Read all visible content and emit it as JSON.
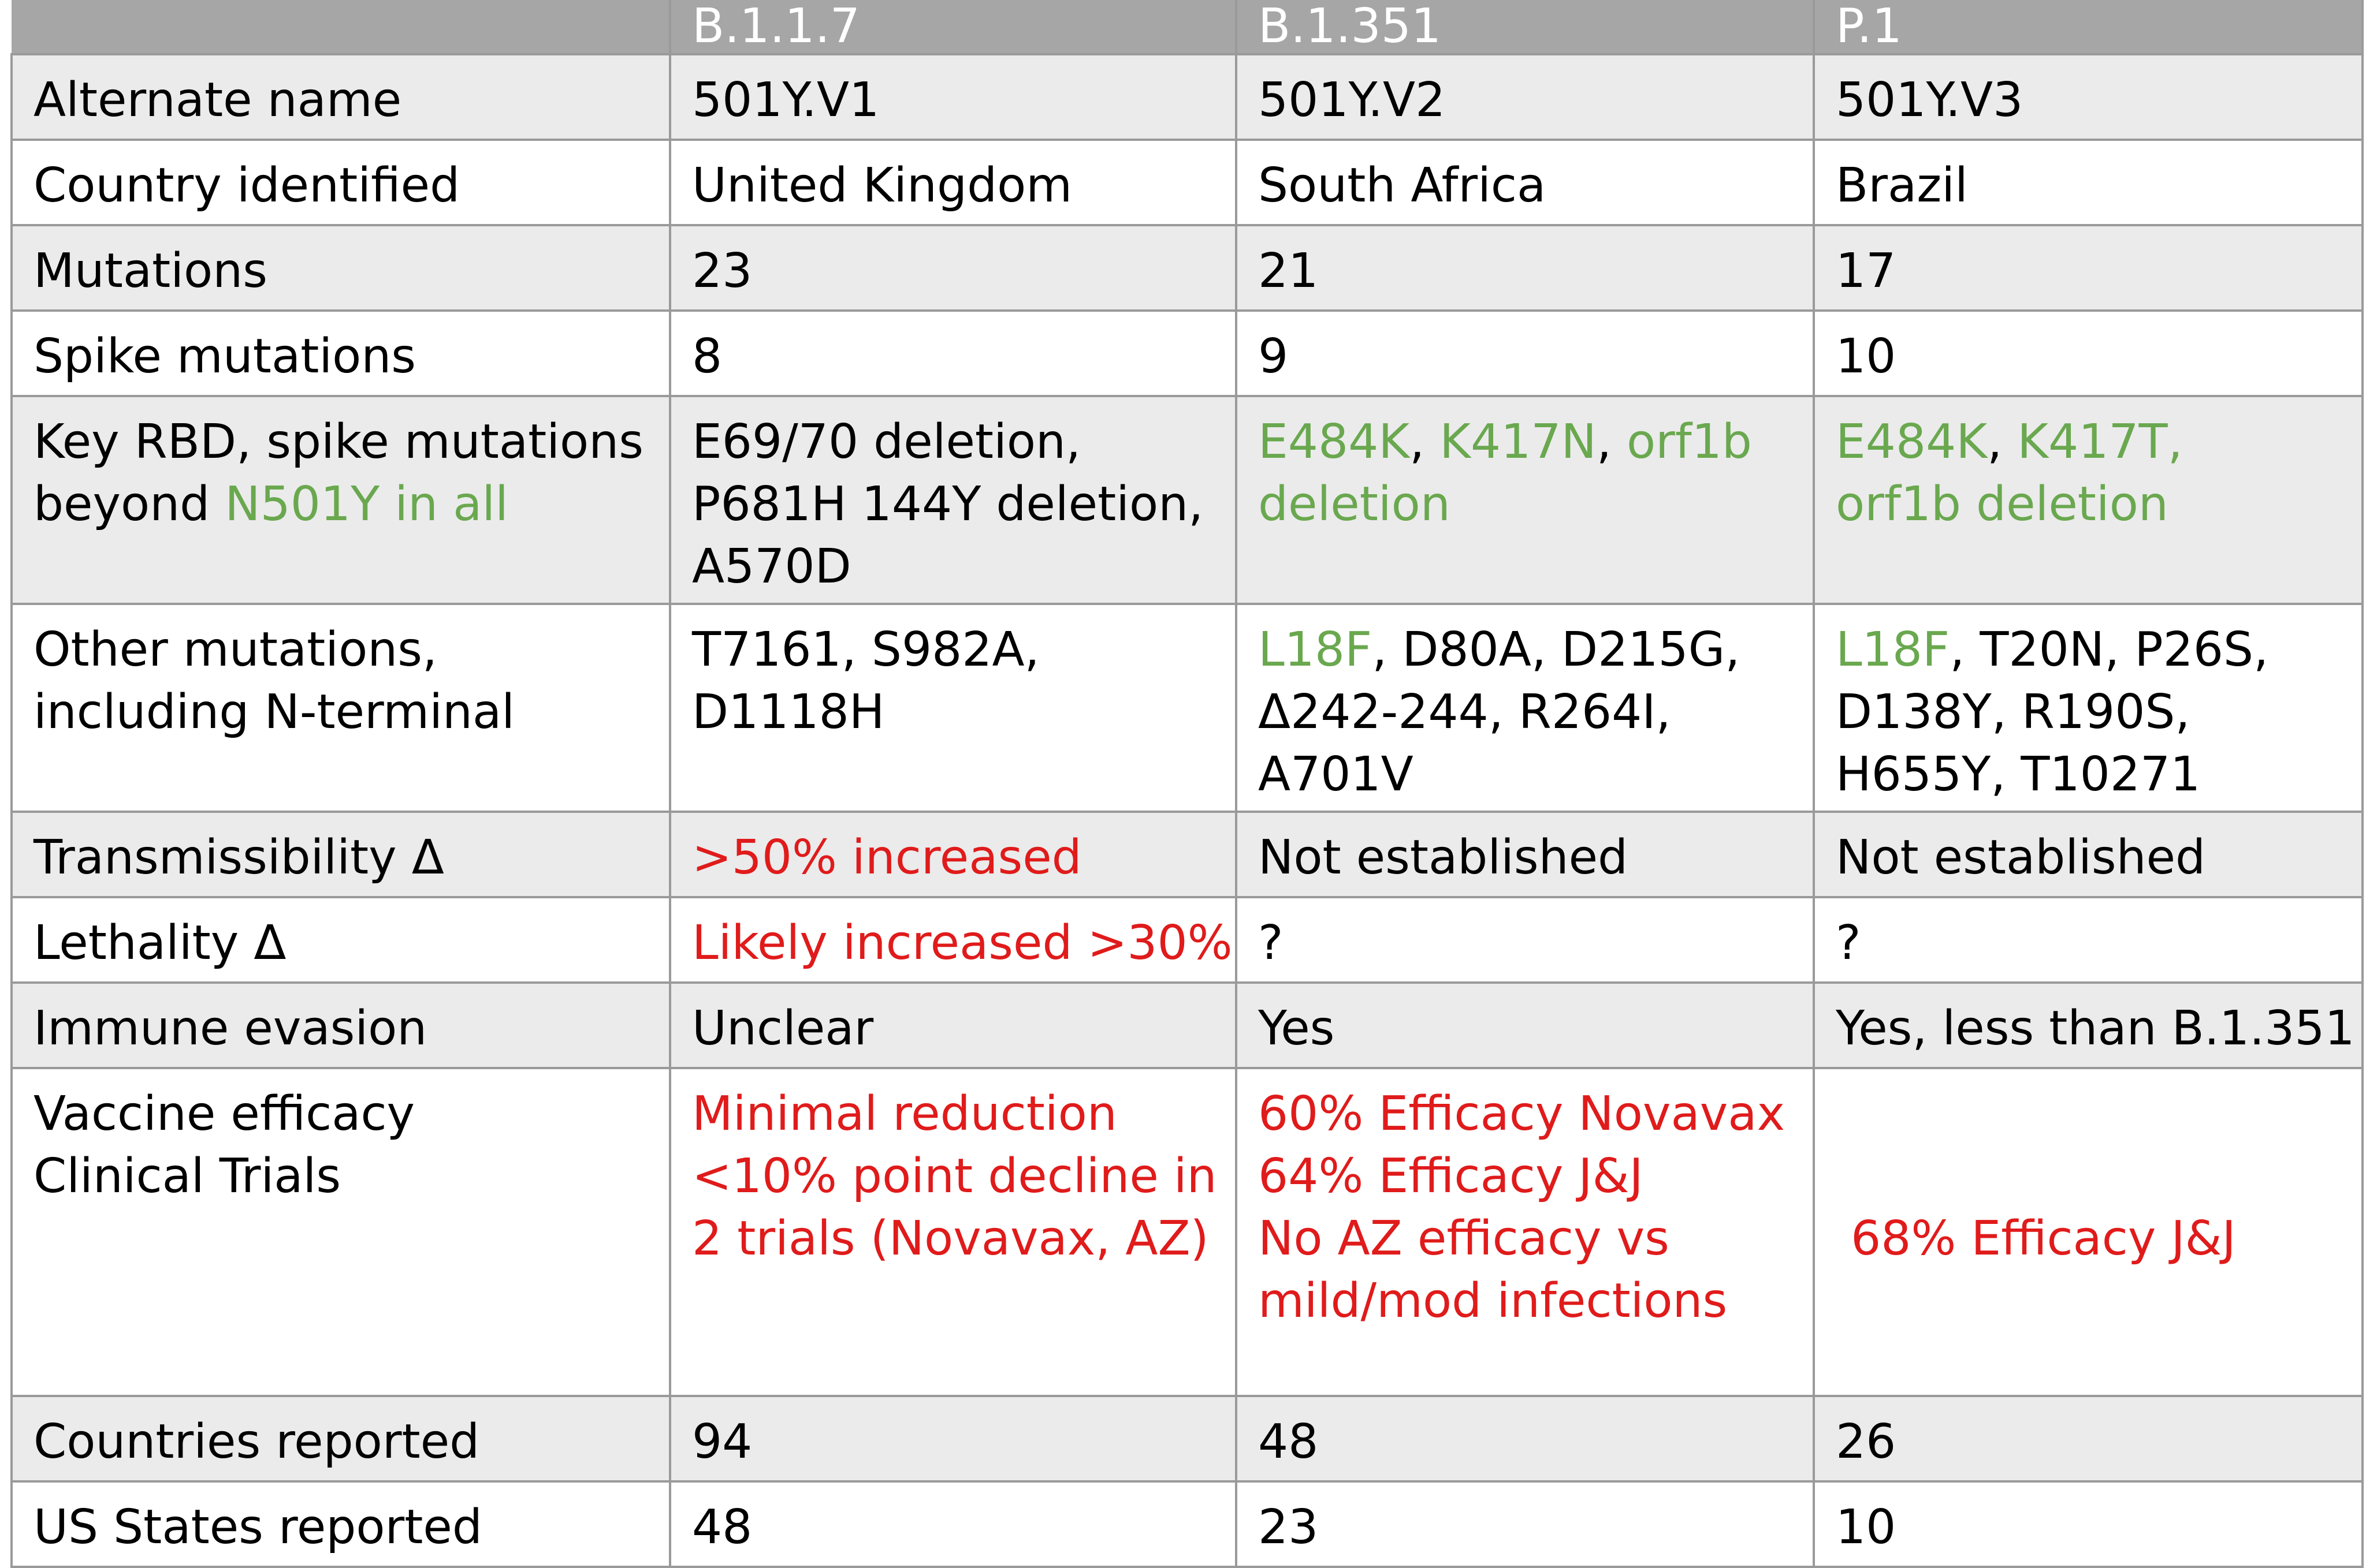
{
  "colors": {
    "header_bg": "#a6a6a6",
    "stripe": "#ebebeb",
    "green": "#6aa84f",
    "red": "#e01b1b"
  },
  "headers": [
    "",
    "B.1.1.7",
    "B.1.351",
    "P.1"
  ],
  "rows": {
    "alternate_name": {
      "label": "Alternate name",
      "c1": "501Y.V1",
      "c2": "501Y.V2",
      "c3": "501Y.V3"
    },
    "country": {
      "label": "Country identified",
      "c1": "United Kingdom",
      "c2": "South Africa",
      "c3": "Brazil"
    },
    "mutations": {
      "label": "Mutations",
      "c1": "23",
      "c2": "21",
      "c3": "17"
    },
    "spike": {
      "label": "Spike mutations",
      "c1": "8",
      "c2": "9",
      "c3": "10"
    },
    "key_rbd": {
      "label_1": "Key RBD, spike mutations",
      "label_2a": "beyond ",
      "label_2b": "N501Y in all",
      "c1_1": "E69/70 deletion,",
      "c1_2": "P681H 144Y deletion,",
      "c1_3": "A570D",
      "c2_a": "E484K",
      "c2_sep1": ", ",
      "c2_b": "K417N",
      "c2_sep2": ", ",
      "c2_c": "orf1b",
      "c2_d": "deletion",
      "c3_a": "E484K",
      "c3_sep1": ", ",
      "c3_b": "K417T,",
      "c3_c": "orf1b deletion"
    },
    "other": {
      "label_1": "Other mutations,",
      "label_2": "including N-terminal",
      "c1_1": "T7161, S982A,",
      "c1_2": "D1118H",
      "c2_a": "L18F",
      "c2_b": ", D80A, D215G,",
      "c2_2": "Δ242-244, R264I,",
      "c2_3": "A701V",
      "c3_a": "L18F",
      "c3_b": ", T20N, P26S,",
      "c3_2": "D138Y, R190S,",
      "c3_3": "H655Y, T10271"
    },
    "transmissibility": {
      "label": "Transmissibility Δ",
      "c1": ">50% increased",
      "c2": "Not established",
      "c3": "Not established"
    },
    "lethality": {
      "label": "Lethality Δ",
      "c1": "Likely increased >30%",
      "c2": "?",
      "c3": "?"
    },
    "immune": {
      "label": "Immune evasion",
      "c1": "Unclear",
      "c2": "Yes",
      "c3": "Yes, less than B.1.351"
    },
    "vaccine": {
      "label_1": "Vaccine efficacy",
      "label_2": "Clinical Trials",
      "c1_1": "Minimal reduction",
      "c1_2": "<10% point decline in",
      "c1_3": "2 trials (Novavax, AZ)",
      "c2_1": "60% Efficacy Novavax",
      "c2_2": "64% Efficacy J&J",
      "c2_3": "No AZ efficacy vs",
      "c2_4": "mild/mod infections",
      "c3_1": " 68% Efficacy J&J"
    },
    "countries": {
      "label": "Countries reported",
      "c1": "94",
      "c2": "48",
      "c3": "26"
    },
    "us_states": {
      "label": "US States reported",
      "c1": "48",
      "c2": "23",
      "c3": "10"
    }
  }
}
